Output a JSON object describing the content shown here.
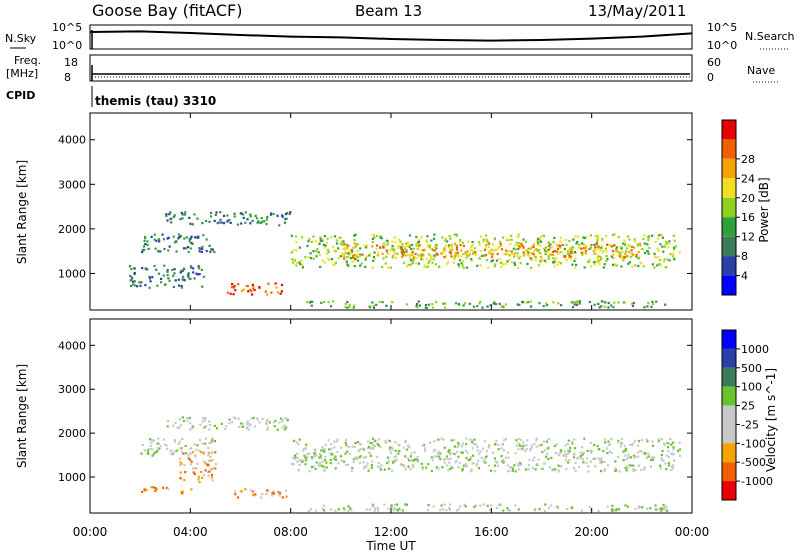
{
  "header": {
    "station": "Goose Bay (fitACF)",
    "beam": "Beam 13",
    "date": "13/May/2011"
  },
  "left_labels": {
    "nsky": "N.Sky",
    "freq": "Freq.",
    "freq_unit": "[MHz]",
    "cpid": "CPID"
  },
  "right_labels": {
    "nsearch": "N.Search",
    "nave": "Nave"
  },
  "cpid_value": "themis (tau) 3310",
  "noise_ticks_left": [
    "10^5",
    "10^0"
  ],
  "noise_ticks_right": [
    "10^5",
    "10^0"
  ],
  "freq_ticks_left": [
    "18",
    "8"
  ],
  "freq_ticks_right": [
    "60",
    "0"
  ],
  "colors": {
    "data_line": "#000000",
    "power_scale": [
      "#0000ff",
      "#2a3fa8",
      "#3d7a5a",
      "#2fa03a",
      "#8fd11f",
      "#f0e020",
      "#f5a300",
      "#f06000",
      "#e80000"
    ],
    "velocity_scale": [
      "#0000ff",
      "#2a3fa8",
      "#3d7a5a",
      "#68c32c",
      "#c8c8c8",
      "#c8c8c8",
      "#f5a300",
      "#f06000",
      "#e80000"
    ]
  },
  "chart_data": [
    {
      "type": "line",
      "title": "",
      "series": [
        {
          "name": "N.Sky",
          "x": [
            "00:00",
            "02:00",
            "04:00",
            "06:00",
            "08:00",
            "10:00",
            "12:00",
            "14:00",
            "16:00",
            "18:00",
            "20:00",
            "22:00",
            "24:00"
          ],
          "values": [
            0.85,
            0.88,
            0.8,
            0.7,
            0.62,
            0.58,
            0.5,
            0.45,
            0.42,
            0.45,
            0.52,
            0.62,
            0.78
          ]
        }
      ],
      "ylim_label": [
        "10^0",
        "10^5"
      ]
    },
    {
      "type": "line",
      "series": [
        {
          "name": "Freq",
          "x": [
            "00:00",
            "24:00"
          ],
          "values": [
            10.5,
            10.5
          ]
        }
      ],
      "ylim": [
        8,
        18
      ]
    },
    {
      "type": "heatmap",
      "ylabel": "Slant Range [km]",
      "colorbar_label": "Power [dB]",
      "colorbar_ticks": [
        "4",
        "8",
        "12",
        "16",
        "20",
        "24",
        "28"
      ],
      "yticks": [
        "1000",
        "2000",
        "3000",
        "4000"
      ],
      "ylim": [
        180,
        4600
      ],
      "xlim": [
        "00:00",
        "24:00"
      ],
      "bands": [
        {
          "t0": 3.0,
          "t1": 8.0,
          "r0": 2100,
          "r1": 2400,
          "level": 2
        },
        {
          "t0": 2.0,
          "t1": 5.0,
          "r0": 1500,
          "r1": 1900,
          "level": 2
        },
        {
          "t0": 1.5,
          "t1": 4.5,
          "r0": 700,
          "r1": 1200,
          "level": 2
        },
        {
          "t0": 5.3,
          "t1": 7.7,
          "r0": 550,
          "r1": 800,
          "level": 7
        },
        {
          "t0": 8.0,
          "t1": 23.5,
          "r0": 1150,
          "r1": 1900,
          "level": 4
        },
        {
          "t0": 10.0,
          "t1": 22.0,
          "r0": 1350,
          "r1": 1700,
          "level": 6
        },
        {
          "t0": 8.5,
          "t1": 23.0,
          "r0": 250,
          "r1": 400,
          "level": 3
        }
      ]
    },
    {
      "type": "heatmap",
      "ylabel": "Slant Range [km]",
      "colorbar_label": "Velocity [m s^-1]",
      "colorbar_ticks": [
        "1000",
        "500",
        "100",
        "25",
        "-25",
        "-100",
        "-500",
        "-1000"
      ],
      "yticks": [
        "1000",
        "2000",
        "3000",
        "4000"
      ],
      "ylim": [
        180,
        4600
      ],
      "xlim": [
        "00:00",
        "24:00"
      ],
      "xticks": [
        "00:00",
        "04:00",
        "08:00",
        "12:00",
        "16:00",
        "20:00",
        "00:00"
      ],
      "xlabel": "Time UT",
      "bands": [
        {
          "t0": 3.0,
          "t1": 8.0,
          "r0": 2100,
          "r1": 2400,
          "level": 4
        },
        {
          "t0": 2.0,
          "t1": 5.0,
          "r0": 1500,
          "r1": 1900,
          "level": 4
        },
        {
          "t0": 3.5,
          "t1": 5.0,
          "r0": 900,
          "r1": 1600,
          "level": 6
        },
        {
          "t0": 2.0,
          "t1": 4.0,
          "r0": 650,
          "r1": 800,
          "level": 6
        },
        {
          "t0": 5.5,
          "t1": 8.0,
          "r0": 550,
          "r1": 750,
          "level": 6
        },
        {
          "t0": 8.0,
          "t1": 23.5,
          "r0": 1150,
          "r1": 1900,
          "level": 4
        },
        {
          "t0": 8.5,
          "t1": 23.0,
          "r0": 250,
          "r1": 400,
          "level": 4
        }
      ]
    }
  ]
}
